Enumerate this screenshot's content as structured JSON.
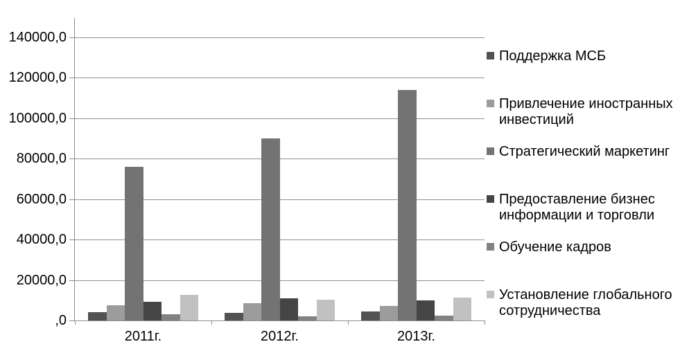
{
  "chart_data": {
    "type": "bar",
    "title": "",
    "xlabel": "",
    "ylabel": "",
    "categories": [
      "2011г.",
      "2012г.",
      "2013г."
    ],
    "series": [
      {
        "name": "Поддержка МСБ",
        "color": "#525252",
        "values": [
          4000,
          3900,
          4500
        ]
      },
      {
        "name": "Привлечение иностранных инвестиций",
        "color": "#9c9c9c",
        "values": [
          7600,
          8600,
          7200
        ]
      },
      {
        "name": "Стратегический маркетинг",
        "color": "#737373",
        "values": [
          76000,
          90000,
          114000
        ]
      },
      {
        "name": "Предоставление бизнес информации и торговли",
        "color": "#454545",
        "values": [
          9100,
          11100,
          9800
        ]
      },
      {
        "name": "Обучение кадров",
        "color": "#828282",
        "values": [
          3100,
          2100,
          2400
        ]
      },
      {
        "name": "Установление глобального сотрудничества",
        "color": "#c1c1c1",
        "values": [
          12800,
          10400,
          11200
        ]
      }
    ],
    "ylim": [
      0,
      140000
    ],
    "ytick_interval": 20000,
    "y_tick_labels": [
      ",0",
      "20000,0",
      "40000,0",
      "60000,0",
      "80000,0",
      "100000,0",
      "120000,0",
      "140000,0"
    ],
    "grid": true,
    "legend_position": "right",
    "axis_color": "#8a8a8a",
    "grid_color": "#909090",
    "text_color": "#000000",
    "background": "#ffffff"
  }
}
